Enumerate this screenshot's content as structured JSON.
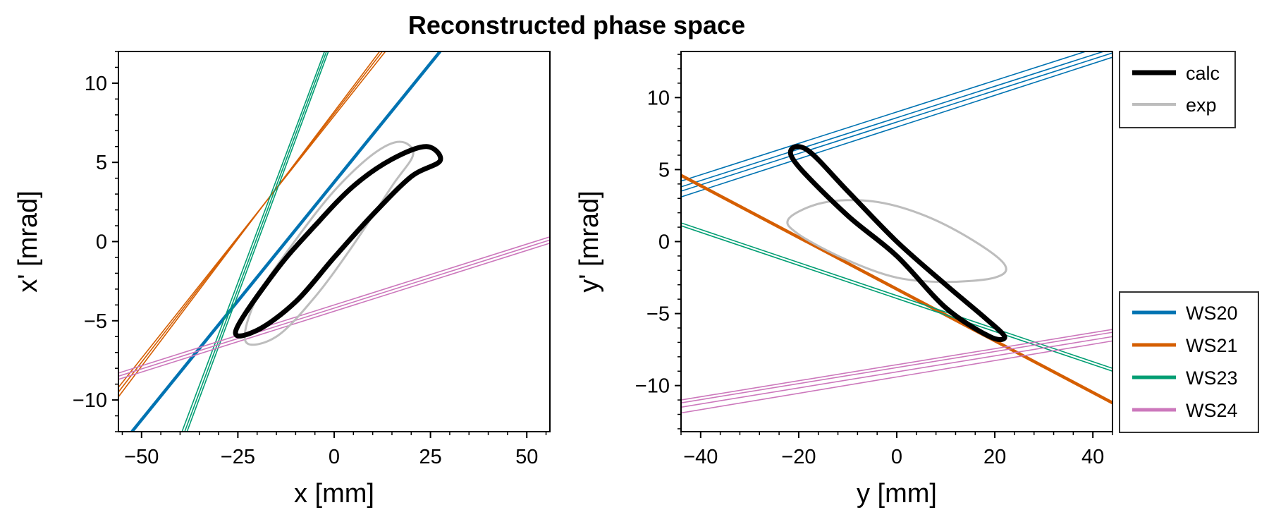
{
  "title": "Reconstructed phase space",
  "legend_top": [
    {
      "label": "calc",
      "color": "#000000"
    },
    {
      "label": "exp",
      "color": "#bdbdbd"
    }
  ],
  "legend_bottom": [
    {
      "label": "WS20",
      "color": "#0173b2"
    },
    {
      "label": "WS21",
      "color": "#d55e00"
    },
    {
      "label": "WS23",
      "color": "#029e73"
    },
    {
      "label": "WS24",
      "color": "#cc78bc"
    }
  ],
  "chart_data": [
    {
      "type": "line",
      "title": "",
      "xlabel": "x [mm]",
      "ylabel": "x' [mrad]",
      "xlim": [
        -56,
        56
      ],
      "ylim": [
        -12,
        12
      ],
      "xticks": [
        -50,
        -25,
        0,
        25,
        50
      ],
      "xtick_labels": [
        "−50",
        "−25",
        "0",
        "25",
        "50"
      ],
      "yticks": [
        -10,
        -5,
        0,
        5,
        10
      ],
      "ytick_labels": [
        "−10",
        "−5",
        "0",
        "5",
        "10"
      ],
      "ellipses": [
        {
          "name": "calc",
          "color": "#000000",
          "center": [
            0,
            0
          ],
          "width": 3,
          "points": [
            [
              -25.5,
              -5.6
            ],
            [
              -20,
              -5.6
            ],
            [
              -10,
              -3.8
            ],
            [
              0,
              -1.0
            ],
            [
              10,
              1.7
            ],
            [
              20,
              4.1
            ],
            [
              27.5,
              5.1
            ],
            [
              24,
              6.0
            ],
            [
              15,
              5.2
            ],
            [
              5,
              3.5
            ],
            [
              -5,
              1.0
            ],
            [
              -15,
              -1.8
            ],
            [
              -25.5,
              -5.6
            ]
          ]
        },
        {
          "name": "exp",
          "color": "#bdbdbd",
          "center": [
            0,
            0
          ],
          "width": 2,
          "points": [
            [
              -23,
              -6.3
            ],
            [
              -15,
              -6.0
            ],
            [
              -5,
              -3.5
            ],
            [
              5,
              -0.2
            ],
            [
              15,
              3.5
            ],
            [
              20.5,
              5.5
            ],
            [
              17,
              6.3
            ],
            [
              10,
              5.5
            ],
            [
              0,
              3.2
            ],
            [
              -10,
              0.1
            ],
            [
              -20,
              -3.5
            ],
            [
              -23,
              -6.3
            ]
          ]
        }
      ],
      "series": [
        {
          "name": "WS20",
          "color": "#0173b2",
          "lines": [
            {
              "x1": -52.5,
              "y1": -12,
              "x2": 27.5,
              "y2": 12
            }
          ]
        },
        {
          "name": "WS21",
          "color": "#d55e00",
          "lines": [
            {
              "x1": -56,
              "y1": -9.8,
              "x2": 11.8,
              "y2": 12
            },
            {
              "x1": -56,
              "y1": -9.5,
              "x2": 12.5,
              "y2": 12
            },
            {
              "x1": -56,
              "y1": -9.2,
              "x2": 13.3,
              "y2": 12
            }
          ]
        },
        {
          "name": "WS23",
          "color": "#029e73",
          "lines": [
            {
              "x1": -39.5,
              "y1": -12,
              "x2": -2.5,
              "y2": 12
            },
            {
              "x1": -38.8,
              "y1": -12,
              "x2": -2,
              "y2": 12
            },
            {
              "x1": -38.2,
              "y1": -12,
              "x2": -1.5,
              "y2": 12
            }
          ]
        },
        {
          "name": "WS24",
          "color": "#cc78bc",
          "lines": [
            {
              "x1": -56,
              "y1": -8.7,
              "x2": 56,
              "y2": -0.1
            },
            {
              "x1": -56,
              "y1": -8.5,
              "x2": 56,
              "y2": 0.1
            },
            {
              "x1": -56,
              "y1": -8.3,
              "x2": 56,
              "y2": 0.3
            }
          ]
        }
      ]
    },
    {
      "type": "line",
      "title": "",
      "xlabel": "y [mm]",
      "ylabel": "y' [mrad]",
      "xlim": [
        -44,
        44
      ],
      "ylim": [
        -13.2,
        13.2
      ],
      "xticks": [
        -40,
        -20,
        0,
        20,
        40
      ],
      "xtick_labels": [
        "−40",
        "−20",
        "0",
        "20",
        "40"
      ],
      "yticks": [
        -10,
        -5,
        0,
        5,
        10
      ],
      "ytick_labels": [
        "−10",
        "−5",
        "0",
        "5",
        "10"
      ],
      "ellipses": [
        {
          "name": "calc",
          "color": "#000000",
          "center": [
            0,
            0
          ],
          "width": 3,
          "points": [
            [
              -21.5,
              6.4
            ],
            [
              -18,
              6.3
            ],
            [
              -10,
              3.5
            ],
            [
              0,
              0
            ],
            [
              10,
              -3.0
            ],
            [
              18,
              -5.3
            ],
            [
              22,
              -6.6
            ],
            [
              19,
              -6.6
            ],
            [
              10,
              -4.6
            ],
            [
              0,
              -1.0
            ],
            [
              -10,
              1.8
            ],
            [
              -20,
              5.2
            ],
            [
              -21.5,
              6.4
            ]
          ]
        },
        {
          "name": "exp",
          "color": "#bdbdbd",
          "center": [
            0,
            0
          ],
          "width": 2,
          "points": [
            [
              -22,
              1.6
            ],
            [
              -15,
              2.7
            ],
            [
              -5,
              2.8
            ],
            [
              5,
              1.9
            ],
            [
              15,
              0.2
            ],
            [
              22,
              -1.6
            ],
            [
              20,
              -2.5
            ],
            [
              10,
              -2.8
            ],
            [
              0,
              -2.5
            ],
            [
              -10,
              -1.3
            ],
            [
              -20,
              0.5
            ],
            [
              -22,
              1.6
            ]
          ]
        }
      ],
      "series": [
        {
          "name": "WS20",
          "color": "#0173b2",
          "lines": [
            {
              "x1": -44,
              "y1": 3.1,
              "x2": 44,
              "y2": 12.8
            },
            {
              "x1": -44,
              "y1": 3.5,
              "x2": 44,
              "y2": 13.1
            },
            {
              "x1": -44,
              "y1": 3.8,
              "x2": 44,
              "y2": 13.4
            },
            {
              "x1": -44,
              "y1": 4.2,
              "x2": 44,
              "y2": 13.8
            }
          ]
        },
        {
          "name": "WS21",
          "color": "#d55e00",
          "lines": [
            {
              "x1": -44,
              "y1": 4.6,
              "x2": 44,
              "y2": -11.2
            }
          ]
        },
        {
          "name": "WS23",
          "color": "#029e73",
          "lines": [
            {
              "x1": -44,
              "y1": 1.1,
              "x2": 44,
              "y2": -9.0
            },
            {
              "x1": -44,
              "y1": 1.3,
              "x2": 44,
              "y2": -8.8
            }
          ]
        },
        {
          "name": "WS24",
          "color": "#cc78bc",
          "lines": [
            {
              "x1": -44,
              "y1": -11.9,
              "x2": 44,
              "y2": -6.9
            },
            {
              "x1": -44,
              "y1": -11.5,
              "x2": 44,
              "y2": -6.6
            },
            {
              "x1": -44,
              "y1": -11.2,
              "x2": 44,
              "y2": -6.3
            },
            {
              "x1": -44,
              "y1": -11.0,
              "x2": 44,
              "y2": -6.1
            }
          ]
        }
      ]
    }
  ]
}
